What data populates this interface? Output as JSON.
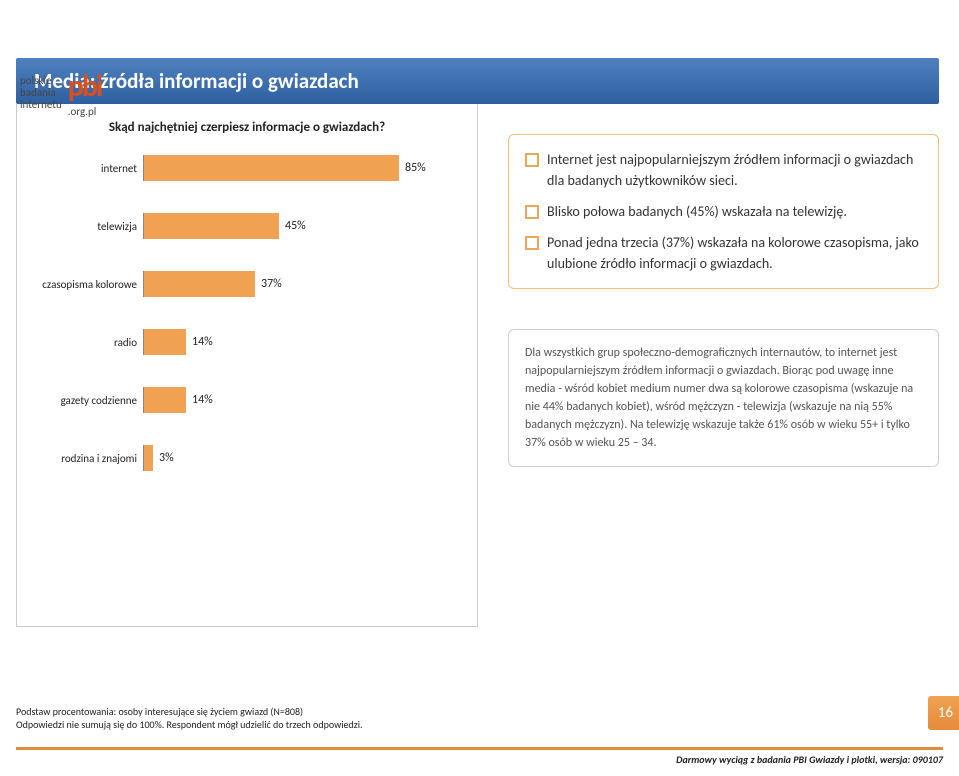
{
  "logo": {
    "line1": "polskie",
    "line2": "badania",
    "line3": "internetu",
    "brand": "pbi",
    "suffix": ".org.pl"
  },
  "title": "Media: źródła informacji o gwiazdach",
  "chart": {
    "type": "bar",
    "title": "Skąd najchętniej czerpiesz informacje o gwiazdach?",
    "max": 100,
    "bar_color": "#f0a252",
    "axis_color": "#888888",
    "text_color": "#222222",
    "label_fontsize": 11,
    "value_fontsize": 12,
    "categories": [
      "internet",
      "telewizja",
      "czasopisma kolorowe",
      "radio",
      "gazety codzienne",
      "rodzina i znajomi"
    ],
    "values": [
      85,
      45,
      37,
      14,
      14,
      3
    ],
    "value_labels": [
      "85%",
      "45%",
      "37%",
      "14%",
      "14%",
      "3%"
    ]
  },
  "box_orange": {
    "border_color": "#f5be74",
    "bullet_color": "#e9a85a",
    "items": [
      "Internet jest najpopularniejszym źródłem informacji o gwiazdach dla badanych użytkowników sieci.",
      "Blisko połowa badanych (45%) wskazała na telewizję.",
      "Ponad jedna trzecia (37%) wskazała na kolorowe czasopisma, jako ulubione źródło informacji o gwiazdach."
    ]
  },
  "box_gray": {
    "border_color": "#cfcfcf",
    "text": "Dla wszystkich grup społeczno-demograficznych internautów, to internet jest najpopularniejszym źródłem informacji o gwiazdach. Biorąc pod uwagę inne media - wśród kobiet medium numer dwa są kolorowe czasopisma (wskazuje na nie 44% badanych kobiet), wśród mężczyzn - telewizja (wskazuje na nią 55% badanych mężczyzn). Na telewizję wskazuje także 61% osób w wieku 55+ i tylko 37% osób w wieku 25 – 34."
  },
  "footnote_line1": "Podstaw procentowania: osoby interesujące się życiem gwiazd (N=808)",
  "footnote_line2": "Odpowiedzi nie sumują się do 100%. Respondent mógł udzielić do trzech odpowiedzi.",
  "footer_credit": "Darmowy wyciąg z badania PBI Gwiazdy i plotki, wersja: 090107",
  "page_number": "16",
  "colors": {
    "title_bg": "#3f70b0",
    "accent": "#e58b3a",
    "page_bg": "#ffffff"
  }
}
